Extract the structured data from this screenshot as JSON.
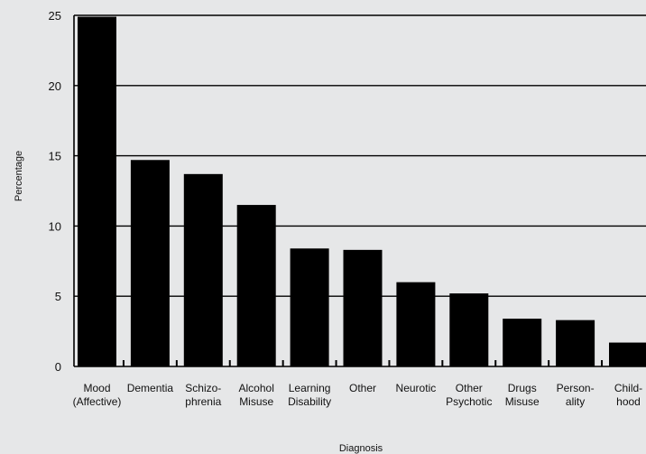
{
  "chart_data": {
    "type": "bar",
    "title": "",
    "xlabel": "Diagnosis",
    "ylabel": "Percentage",
    "ylim": [
      0,
      25
    ],
    "yticks": [
      0,
      5,
      10,
      15,
      20,
      25
    ],
    "grid": true,
    "categories": [
      [
        "Mood",
        "(Affective)"
      ],
      [
        "Dementia"
      ],
      [
        "Schizo-",
        "phrenia"
      ],
      [
        "Alcohol",
        "Misuse"
      ],
      [
        "Learning",
        "Disability"
      ],
      [
        "Other"
      ],
      [
        "Neurotic"
      ],
      [
        "Other",
        "Psychotic"
      ],
      [
        "Drugs",
        "Misuse"
      ],
      [
        "Person-",
        "ality"
      ],
      [
        "Child-",
        "hood"
      ]
    ],
    "values": [
      24.9,
      14.7,
      13.7,
      11.5,
      8.4,
      8.3,
      6.0,
      5.2,
      3.4,
      3.3,
      1.7
    ],
    "colors": {
      "bar": "#000000",
      "background": "#e6e7e8",
      "grid": "#000000"
    }
  }
}
